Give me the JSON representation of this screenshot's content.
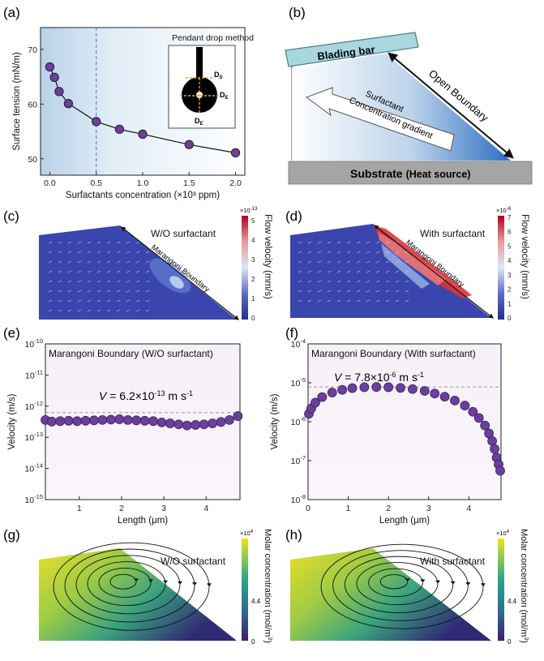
{
  "panel_labels": {
    "a": "(a)",
    "b": "(b)",
    "c": "(c)",
    "d": "(d)",
    "e": "(e)",
    "f": "(f)",
    "g": "(g)",
    "h": "(h)"
  },
  "colors": {
    "marker": "#6b3f9c",
    "marker_edge": "#1a1a1a",
    "shade": "#cfe0ef",
    "axes": "#222222",
    "dashed_blue": "#4a6bd6",
    "dashed_grey": "#9a9a9a",
    "flow_low": "#3d3f9e",
    "flow_high": "#c8102e",
    "conc_low": "#3b1f6b",
    "conc_high": "#f2e21a"
  },
  "panel_a": {
    "inset_title": "Pendant drop method",
    "inset_labels": {
      "ds": "D",
      "ds_sub": "S",
      "de1": "D",
      "de1_sub": "E",
      "de2": "D",
      "de2_sub": "E"
    }
  },
  "panel_b": {
    "blading_bar": "Blading bar",
    "open_boundary": "Open Boundary",
    "gradient_line1": "Surfactant",
    "gradient_line2": "Concentration gradient",
    "substrate": "Substrate",
    "heat_source": "(Heat source)"
  },
  "panel_c": {
    "note": "W/O surfactant",
    "boundary": "Marangoni Boundary",
    "colorbar_title": "Flow velocity (mm/s)",
    "colorbar_exp": "×10",
    "colorbar_exp_power": "-13",
    "colorbar_ticks": [
      "5",
      "4",
      "3",
      "2",
      "1",
      "0"
    ]
  },
  "panel_d": {
    "note": "With surfactant",
    "boundary": "Marangoni Boundary",
    "colorbar_title": "Flow velocity (mm/s)",
    "colorbar_exp": "×10",
    "colorbar_exp_power": "-6",
    "colorbar_ticks": [
      "7",
      "6",
      "5",
      "4",
      "3",
      "2",
      "1",
      "0"
    ]
  },
  "panel_e": {
    "box_label": "Marangoni Boundary  (W/O surfactant)",
    "eq_v": "V",
    "eq_rest": " = 6.2×10",
    "eq_power": "-13",
    "eq_unit": " m s",
    "eq_unit_power": "-1"
  },
  "panel_f": {
    "box_label": "Marangoni Boundary  (With surfactant)",
    "eq_v": "V",
    "eq_rest": " = 7.8×10",
    "eq_power": "-6",
    "eq_unit": " m s",
    "eq_unit_power": "-1"
  },
  "panel_g": {
    "note": "W/O surfactant",
    "colorbar_title": "Molar concentration (mol/m",
    "colorbar_title_power": "3",
    "colorbar_title_end": ")",
    "colorbar_exp": "×10",
    "colorbar_exp_power": "4",
    "colorbar_ticks": [
      "4.4",
      "0"
    ]
  },
  "panel_h": {
    "note": "With surfactant",
    "colorbar_title": "Molar concentration (mol/m",
    "colorbar_title_power": "3",
    "colorbar_title_end": ")",
    "colorbar_exp": "×10",
    "colorbar_exp_power": "4",
    "colorbar_ticks": [
      "4.4",
      "0"
    ]
  },
  "chart_data": [
    {
      "type": "scatter",
      "panel": "a",
      "xlabel": "Surfactants concentration (×10³ ppm)",
      "ylabel": "Surface tension (mN/m)",
      "xlim": [
        -0.1,
        2.1
      ],
      "ylim": [
        47,
        74
      ],
      "x_ticks": [
        "0.0",
        "0.5",
        "1.0",
        "1.5",
        "2.0"
      ],
      "y_ticks": [
        "50",
        "60",
        "70"
      ],
      "vline_x": 0.5,
      "series": [
        {
          "x": [
            0,
            0.05,
            0.1,
            0.2,
            0.5,
            0.75,
            1.0,
            1.5,
            2.0
          ],
          "y": [
            66.8,
            64.9,
            62.3,
            60.1,
            56.8,
            55.4,
            54.5,
            52.6,
            51.1
          ]
        }
      ],
      "fit_curve": true
    },
    {
      "type": "scatter",
      "panel": "e",
      "xlabel": "Length (μm)",
      "ylabel": "Velocity (m/s)",
      "xlim": [
        0.2,
        4.8
      ],
      "ylim_log10": [
        -15,
        -10
      ],
      "log_scale_y": true,
      "x_ticks": [
        "1",
        "2",
        "3",
        "4"
      ],
      "y_ticks_base": "10",
      "y_ticks_power": [
        "-15",
        "-14",
        "-13",
        "-12",
        "-11",
        "-10"
      ],
      "hline_y": 6.2e-13,
      "series": [
        {
          "x": [
            0.2,
            0.35,
            0.55,
            0.75,
            0.95,
            1.15,
            1.35,
            1.55,
            1.75,
            1.95,
            2.15,
            2.35,
            2.55,
            2.75,
            2.95,
            3.15,
            3.35,
            3.55,
            3.75,
            3.95,
            4.15,
            4.35,
            4.55,
            4.75
          ],
          "y": [
            3.6e-13,
            3.2e-13,
            3.3e-13,
            3.4e-13,
            3.3e-13,
            3.4e-13,
            3.5e-13,
            3.6e-13,
            3.7e-13,
            3.8e-13,
            3.6e-13,
            3.5e-13,
            3.4e-13,
            3.3e-13,
            3e-13,
            2.8e-13,
            2.6e-13,
            2.4e-13,
            2.5e-13,
            2.6e-13,
            2.8e-13,
            3.1e-13,
            3.6e-13,
            4.8e-13
          ]
        }
      ]
    },
    {
      "type": "scatter",
      "panel": "f",
      "xlabel": "Length (μm)",
      "ylabel": "Velocity (m/s)",
      "xlim": [
        0,
        4.8
      ],
      "ylim_log10": [
        -8,
        -4
      ],
      "log_scale_y": true,
      "x_ticks": [
        "0",
        "1",
        "2",
        "3",
        "4"
      ],
      "y_ticks_base": "10",
      "y_ticks_power": [
        "-8",
        "-7",
        "-6",
        "-5",
        "-4"
      ],
      "hline_y": 7.8e-06,
      "series": [
        {
          "x": [
            0.02,
            0.08,
            0.18,
            0.35,
            0.6,
            0.85,
            1.1,
            1.4,
            1.7,
            2.0,
            2.3,
            2.6,
            2.9,
            3.15,
            3.4,
            3.65,
            3.9,
            4.1,
            4.25,
            4.4,
            4.5,
            4.58,
            4.64,
            4.69,
            4.74,
            4.78
          ],
          "y": [
            1.6e-06,
            2.2e-06,
            3.1e-06,
            4.3e-06,
            5.6e-06,
            6.6e-06,
            7.3e-06,
            7.7e-06,
            7.8e-06,
            7.7e-06,
            7.4e-06,
            6.9e-06,
            6.2e-06,
            5.3e-06,
            4.4e-06,
            3.5e-06,
            2.6e-06,
            1.8e-06,
            1.25e-06,
            8e-07,
            5e-07,
            3.2e-07,
            2e-07,
            1.2e-07,
            8e-08,
            5.5e-08
          ]
        }
      ]
    }
  ]
}
